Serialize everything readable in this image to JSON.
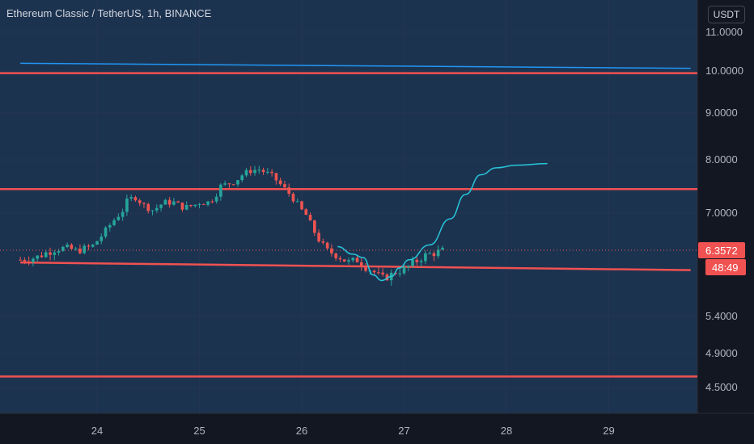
{
  "header": {
    "title": "Ethereum Classic / TetherUS, 1h, BINANCE",
    "currency": "USDT"
  },
  "colors": {
    "background": "#131722",
    "plot_fill": "#1c3350",
    "grid": "#233552",
    "level_line": "#f05151",
    "trend_line": "#2196f3",
    "projection": "#26c6da",
    "candle_up": "#26a69a",
    "candle_down": "#ef5350",
    "axis_text": "#b2b5be",
    "price_badge": "#f05151"
  },
  "chart_data": {
    "type": "candlestick",
    "x_ticks": [
      "24",
      "25",
      "26",
      "27",
      "28",
      "29"
    ],
    "y_ticks": [
      "11.0000",
      "10.0000",
      "9.0000",
      "8.0000",
      "7.0000",
      "6.3572",
      "5.4000",
      "4.9000",
      "4.5000"
    ],
    "price_axis_labels": [
      "11.0000",
      "10.0000",
      "9.0000",
      "8.0000",
      "7.0000",
      "5.4000",
      "4.9000",
      "4.5000"
    ],
    "last_price": "6.3572",
    "countdown": "48:49",
    "horizontal_levels": [
      9.95,
      7.45,
      4.63
    ],
    "support_line": {
      "from": {
        "x": 23.25,
        "y": 6.18
      },
      "to": {
        "x": 29.8,
        "y": 6.07
      }
    },
    "trend_line": {
      "from": {
        "x": 23.25,
        "y": 10.2
      },
      "to": {
        "x": 29.8,
        "y": 10.07
      }
    },
    "close_path": [
      [
        23.25,
        6.22
      ],
      [
        23.4,
        6.25
      ],
      [
        23.5,
        6.32
      ],
      [
        23.6,
        6.38
      ],
      [
        23.7,
        6.4
      ],
      [
        23.8,
        6.35
      ],
      [
        23.9,
        6.4
      ],
      [
        23.95,
        6.42
      ],
      [
        24.05,
        6.62
      ],
      [
        24.15,
        6.85
      ],
      [
        24.25,
        7.05
      ],
      [
        24.3,
        7.25
      ],
      [
        24.38,
        7.3
      ],
      [
        24.45,
        7.15
      ],
      [
        24.55,
        7.05
      ],
      [
        24.65,
        7.2
      ],
      [
        24.75,
        7.2
      ],
      [
        24.85,
        7.1
      ],
      [
        24.95,
        7.15
      ],
      [
        25.0,
        7.2
      ],
      [
        25.08,
        7.2
      ],
      [
        25.15,
        7.3
      ],
      [
        25.2,
        7.5
      ],
      [
        25.28,
        7.55
      ],
      [
        25.35,
        7.6
      ],
      [
        25.42,
        7.72
      ],
      [
        25.5,
        7.8
      ],
      [
        25.58,
        7.82
      ],
      [
        25.65,
        7.76
      ],
      [
        25.72,
        7.68
      ],
      [
        25.8,
        7.52
      ],
      [
        25.9,
        7.32
      ],
      [
        26.0,
        7.05
      ],
      [
        26.05,
        6.95
      ],
      [
        26.1,
        6.75
      ],
      [
        26.18,
        6.5
      ],
      [
        26.25,
        6.35
      ],
      [
        26.35,
        6.28
      ],
      [
        26.45,
        6.18
      ],
      [
        26.55,
        6.22
      ],
      [
        26.62,
        6.12
      ],
      [
        26.7,
        6.05
      ],
      [
        26.78,
        5.95
      ],
      [
        26.85,
        5.98
      ],
      [
        26.92,
        6.05
      ],
      [
        27.0,
        6.08
      ],
      [
        27.1,
        6.18
      ],
      [
        27.2,
        6.28
      ],
      [
        27.3,
        6.32
      ],
      [
        27.38,
        6.36
      ]
    ],
    "projection_path": [
      [
        26.35,
        6.42
      ],
      [
        26.5,
        6.3
      ],
      [
        26.6,
        6.25
      ],
      [
        26.7,
        6.0
      ],
      [
        26.78,
        5.92
      ],
      [
        26.88,
        5.98
      ],
      [
        26.95,
        6.1
      ],
      [
        27.05,
        6.22
      ],
      [
        27.25,
        6.45
      ],
      [
        27.45,
        6.9
      ],
      [
        27.6,
        7.35
      ],
      [
        27.75,
        7.72
      ],
      [
        27.9,
        7.85
      ],
      [
        28.1,
        7.9
      ],
      [
        28.4,
        7.93
      ]
    ]
  }
}
